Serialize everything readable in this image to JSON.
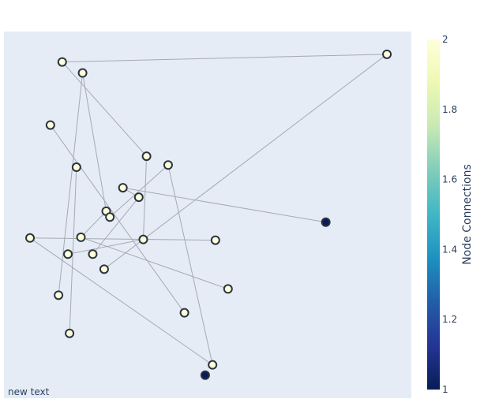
{
  "chart_data": {
    "type": "scatter",
    "title": "",
    "xlabel": "",
    "ylabel": "",
    "grid": false,
    "plot_background": "#e5ecf6",
    "node_outline_color": "#2a3340",
    "edge_color": "#a6aab0",
    "annotation": "new text",
    "xlim": [
      0,
      1
    ],
    "ylim": [
      0,
      1
    ],
    "colorbar": {
      "title": "Node Connections",
      "min": 1,
      "max": 2,
      "ticks": [
        "1",
        "1.2",
        "1.4",
        "1.6",
        "1.8",
        "2"
      ],
      "tick_values": [
        1,
        1.2,
        1.4,
        1.6,
        1.8,
        2
      ],
      "colorscale": [
        "#081d58",
        "#253494",
        "#225ea8",
        "#1d91c0",
        "#41b6c4",
        "#7fcdbb",
        "#c7e9b4",
        "#edf8b1",
        "#ffffd9"
      ]
    },
    "nodes": [
      {
        "x": 0.143,
        "y": 0.917,
        "connections": 2
      },
      {
        "x": 0.94,
        "y": 0.938,
        "connections": 2
      },
      {
        "x": 0.193,
        "y": 0.887,
        "connections": 2
      },
      {
        "x": 0.114,
        "y": 0.745,
        "connections": 2
      },
      {
        "x": 0.178,
        "y": 0.63,
        "connections": 2
      },
      {
        "x": 0.35,
        "y": 0.66,
        "connections": 2
      },
      {
        "x": 0.403,
        "y": 0.636,
        "connections": 2
      },
      {
        "x": 0.292,
        "y": 0.574,
        "connections": 2
      },
      {
        "x": 0.331,
        "y": 0.548,
        "connections": 2
      },
      {
        "x": 0.251,
        "y": 0.51,
        "connections": 2
      },
      {
        "x": 0.26,
        "y": 0.494,
        "connections": 2
      },
      {
        "x": 0.064,
        "y": 0.437,
        "connections": 2
      },
      {
        "x": 0.189,
        "y": 0.439,
        "connections": 2
      },
      {
        "x": 0.342,
        "y": 0.433,
        "connections": 2
      },
      {
        "x": 0.519,
        "y": 0.431,
        "connections": 2
      },
      {
        "x": 0.157,
        "y": 0.393,
        "connections": 2
      },
      {
        "x": 0.218,
        "y": 0.393,
        "connections": 2
      },
      {
        "x": 0.246,
        "y": 0.352,
        "connections": 2
      },
      {
        "x": 0.134,
        "y": 0.281,
        "connections": 2
      },
      {
        "x": 0.55,
        "y": 0.298,
        "connections": 2
      },
      {
        "x": 0.443,
        "y": 0.233,
        "connections": 2
      },
      {
        "x": 0.161,
        "y": 0.177,
        "connections": 2
      },
      {
        "x": 0.512,
        "y": 0.091,
        "connections": 2
      },
      {
        "x": 0.494,
        "y": 0.063,
        "connections": 1
      },
      {
        "x": 0.79,
        "y": 0.48,
        "connections": 1
      }
    ],
    "edges": [
      [
        0,
        1
      ],
      [
        1,
        17
      ],
      [
        0,
        5
      ],
      [
        2,
        18
      ],
      [
        2,
        9
      ],
      [
        3,
        20
      ],
      [
        4,
        21
      ],
      [
        5,
        13
      ],
      [
        6,
        22
      ],
      [
        7,
        8
      ],
      [
        8,
        16
      ],
      [
        9,
        12
      ],
      [
        10,
        6
      ],
      [
        11,
        14
      ],
      [
        12,
        19
      ],
      [
        13,
        15
      ],
      [
        7,
        24
      ],
      [
        22,
        11
      ]
    ]
  }
}
